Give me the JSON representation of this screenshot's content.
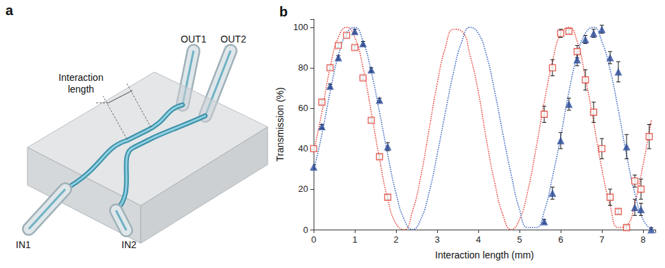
{
  "diagram": {
    "panel_label": "a",
    "labels": {
      "interaction": "Interaction length",
      "in1": "IN1",
      "in2": "IN2",
      "out1": "OUT1",
      "out2": "OUT2"
    }
  },
  "chart_data": {
    "type": "scatter",
    "panel_label": "b",
    "x_label": "Interaction length (mm)",
    "y_label": "Transmission (%)",
    "xlim": [
      0,
      8.3
    ],
    "xticks": [
      0,
      1,
      2,
      3,
      4,
      5,
      6,
      7,
      8
    ],
    "ylim": [
      0,
      104
    ],
    "yticks": [
      0,
      20,
      40,
      60,
      80,
      100
    ],
    "grid": false,
    "series": [
      {
        "type": "line",
        "line_style": "dotted",
        "color": "#e8453c",
        "x": [
          0,
          0.2,
          0.4,
          0.6,
          0.8,
          1.0,
          1.2,
          1.4,
          1.6,
          1.8,
          2.0,
          2.2,
          2.4,
          2.6,
          2.8,
          3.0,
          3.2,
          3.4,
          3.6,
          3.8,
          4.0,
          4.2,
          4.4,
          4.6,
          4.8,
          5.0,
          5.2,
          5.4,
          5.6,
          5.8,
          6.0,
          6.2,
          6.4,
          6.6,
          6.8,
          7.0,
          7.2,
          7.4,
          7.6,
          7.8,
          8.0,
          8.2
        ],
        "values": [
          38,
          58,
          80,
          95,
          100,
          95,
          80,
          58,
          35,
          15,
          3,
          0,
          9,
          26,
          49,
          72,
          90,
          99,
          98,
          86,
          68,
          44,
          23,
          7,
          0,
          5,
          19,
          40,
          63,
          83,
          97,
          100,
          93,
          75,
          53,
          30,
          12,
          1,
          2,
          13,
          32,
          54
        ]
      },
      {
        "type": "line",
        "line_style": "dotted",
        "color": "#3a66c0",
        "x": [
          0,
          0.2,
          0.4,
          0.6,
          0.8,
          1.0,
          1.2,
          1.4,
          1.6,
          1.8,
          2.0,
          2.2,
          2.4,
          2.6,
          2.8,
          3.0,
          3.2,
          3.4,
          3.6,
          3.8,
          4.0,
          4.2,
          4.4,
          4.6,
          4.8,
          5.0,
          5.2,
          5.4,
          5.6,
          5.8,
          6.0,
          6.2,
          6.4,
          6.6,
          6.8,
          7.0,
          7.2,
          7.4,
          7.6,
          7.8,
          8.0,
          8.2
        ],
        "values": [
          29,
          47,
          68,
          86,
          97,
          100,
          93,
          78,
          58,
          37,
          18,
          5,
          0,
          5,
          18,
          37,
          58,
          78,
          93,
          100,
          97,
          86,
          68,
          47,
          27,
          10,
          1,
          1,
          9,
          26,
          46,
          68,
          86,
          97,
          100,
          93,
          79,
          59,
          37,
          18,
          5,
          0
        ]
      },
      {
        "type": "scatter",
        "marker": "open-square",
        "color": "#e03c31",
        "x": [
          0,
          0.2,
          0.4,
          0.6,
          0.8,
          1.0,
          1.2,
          1.4,
          1.6,
          1.8,
          5.6,
          5.8,
          6.0,
          6.2,
          6.4,
          6.6,
          6.8,
          7.0,
          7.2,
          7.4,
          7.6,
          7.8,
          7.95,
          8.15
        ],
        "values": [
          40,
          63,
          80,
          91,
          96,
          90,
          75,
          54,
          36,
          16,
          57,
          80,
          97,
          98,
          88,
          74,
          58,
          40,
          16,
          9,
          1,
          24,
          20,
          46
        ],
        "errors": [
          1,
          1,
          1,
          1,
          1,
          1,
          1,
          1,
          1,
          1,
          4,
          4,
          2,
          1,
          3,
          5,
          5,
          5,
          4,
          1,
          1,
          3,
          5,
          6
        ]
      },
      {
        "type": "scatter",
        "marker": "triangle",
        "color": "#2b4b9b",
        "x": [
          0,
          0.2,
          0.4,
          0.6,
          1.0,
          1.2,
          1.4,
          1.6,
          1.8,
          5.6,
          5.8,
          6.0,
          6.2,
          6.4,
          6.6,
          6.8,
          7.0,
          7.2,
          7.4,
          7.6,
          7.8,
          7.95,
          8.2
        ],
        "values": [
          31,
          51,
          71,
          85,
          98,
          92,
          79,
          64,
          41,
          4,
          18,
          44,
          62,
          84,
          94,
          97,
          99,
          85,
          78,
          41,
          11,
          10,
          0
        ],
        "errors": [
          1,
          1,
          1,
          1,
          1,
          1,
          1,
          1,
          2,
          1,
          3,
          4,
          3,
          3,
          2,
          2,
          2,
          3,
          5,
          6,
          4,
          3,
          1
        ]
      }
    ]
  }
}
